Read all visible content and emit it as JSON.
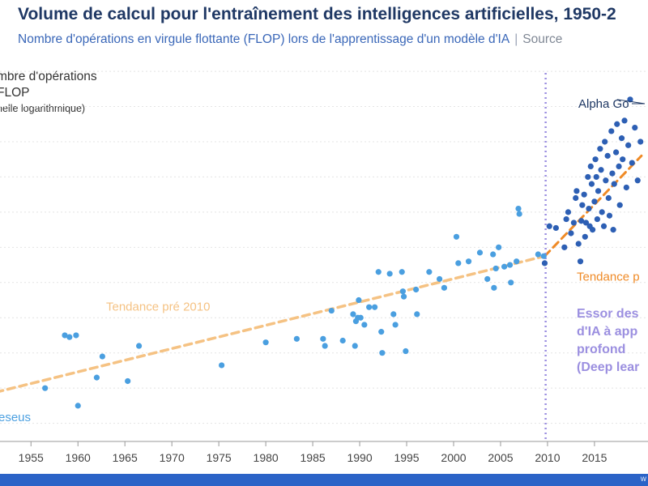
{
  "chart_data": {
    "type": "scatter",
    "title": "Volume de calcul pour l'entraînement des intelligences artificielles, 1950-2",
    "subtitle": "Nombre d'opérations en virgule flottante (FLOP) lors de l'apprentissage d'un modèle d'IA",
    "source": "Source",
    "ylabel_lines": [
      "mbre d'opérations",
      "FLOP",
      "helle logarithmique)"
    ],
    "x_ticks": [
      "1955",
      "1960",
      "1965",
      "1970",
      "1975",
      "1980",
      "1985",
      "1990",
      "1995",
      "2000",
      "2005",
      "2010",
      "2015"
    ],
    "y_scale": "log",
    "grid": true,
    "series": [
      {
        "name": "pre-2010",
        "color": "#4a9fe0",
        "points": [
          [
            1956.5,
            3.0
          ],
          [
            1958.6,
            4.5
          ],
          [
            1959.1,
            4.45
          ],
          [
            1959.8,
            4.5
          ],
          [
            1960.0,
            2.5
          ],
          [
            1962.0,
            3.3
          ],
          [
            1962.6,
            3.9
          ],
          [
            1965.3,
            3.2
          ],
          [
            1966.5,
            4.2
          ],
          [
            1975.3,
            3.65
          ],
          [
            1980.0,
            4.3
          ],
          [
            1983.3,
            4.4
          ],
          [
            1986.1,
            4.4
          ],
          [
            1986.3,
            4.2
          ],
          [
            1987.0,
            5.2
          ],
          [
            1988.2,
            4.35
          ],
          [
            1989.3,
            5.1
          ],
          [
            1989.5,
            4.2
          ],
          [
            1989.6,
            4.9
          ],
          [
            1989.8,
            5.0
          ],
          [
            1989.9,
            5.5
          ],
          [
            1990.1,
            5.0
          ],
          [
            1990.5,
            4.8
          ],
          [
            1991.0,
            5.3
          ],
          [
            1991.6,
            5.3
          ],
          [
            1992.0,
            6.3
          ],
          [
            1992.3,
            4.6
          ],
          [
            1992.4,
            4.0
          ],
          [
            1993.2,
            6.25
          ],
          [
            1993.6,
            5.1
          ],
          [
            1993.8,
            4.8
          ],
          [
            1994.5,
            6.3
          ],
          [
            1994.6,
            5.75
          ],
          [
            1994.7,
            5.6
          ],
          [
            1994.9,
            4.05
          ],
          [
            1996.0,
            5.8
          ],
          [
            1996.1,
            5.1
          ],
          [
            1997.4,
            6.3
          ],
          [
            1998.5,
            6.1
          ],
          [
            1999.0,
            5.85
          ],
          [
            2000.3,
            7.3
          ],
          [
            2000.5,
            6.55
          ],
          [
            2001.6,
            6.6
          ],
          [
            2002.8,
            6.85
          ],
          [
            2003.6,
            6.1
          ],
          [
            2004.2,
            6.8
          ],
          [
            2004.3,
            5.85
          ],
          [
            2004.5,
            6.4
          ],
          [
            2004.8,
            7.0
          ],
          [
            2005.4,
            6.45
          ],
          [
            2006.0,
            6.5
          ],
          [
            2006.1,
            6.0
          ],
          [
            2006.7,
            6.6
          ],
          [
            2006.9,
            8.1
          ],
          [
            2007.0,
            7.95
          ],
          [
            2009.0,
            6.8
          ],
          [
            2009.6,
            6.75
          ]
        ]
      },
      {
        "name": "post-2010",
        "color": "#2d5fb4",
        "points": [
          [
            2009.7,
            6.55
          ],
          [
            2010.2,
            7.6
          ],
          [
            2010.9,
            7.55
          ],
          [
            2011.8,
            7.0
          ],
          [
            2012.0,
            7.8
          ],
          [
            2012.2,
            8.0
          ],
          [
            2012.5,
            7.4
          ],
          [
            2012.8,
            7.7
          ],
          [
            2013.0,
            8.4
          ],
          [
            2013.1,
            8.6
          ],
          [
            2013.3,
            7.1
          ],
          [
            2013.5,
            6.6
          ],
          [
            2013.6,
            7.75
          ],
          [
            2013.7,
            8.2
          ],
          [
            2013.9,
            8.5
          ],
          [
            2014.0,
            7.3
          ],
          [
            2014.1,
            7.7
          ],
          [
            2014.3,
            9.0
          ],
          [
            2014.4,
            8.1
          ],
          [
            2014.5,
            7.6
          ],
          [
            2014.6,
            9.3
          ],
          [
            2014.7,
            8.8
          ],
          [
            2014.8,
            7.5
          ],
          [
            2015.0,
            8.3
          ],
          [
            2015.1,
            9.5
          ],
          [
            2015.2,
            9.0
          ],
          [
            2015.3,
            7.8
          ],
          [
            2015.4,
            8.6
          ],
          [
            2015.6,
            9.8
          ],
          [
            2015.7,
            9.2
          ],
          [
            2015.8,
            8.0
          ],
          [
            2016.0,
            7.6
          ],
          [
            2016.1,
            10.0
          ],
          [
            2016.2,
            8.9
          ],
          [
            2016.4,
            9.6
          ],
          [
            2016.5,
            8.4
          ],
          [
            2016.6,
            7.9
          ],
          [
            2016.8,
            10.3
          ],
          [
            2016.9,
            9.1
          ],
          [
            2017.0,
            7.5
          ],
          [
            2017.1,
            8.8
          ],
          [
            2017.3,
            9.7
          ],
          [
            2017.4,
            10.5
          ],
          [
            2017.6,
            9.3
          ],
          [
            2017.7,
            8.2
          ],
          [
            2017.9,
            10.1
          ],
          [
            2018.0,
            9.5
          ],
          [
            2018.2,
            10.6
          ],
          [
            2018.4,
            8.7
          ],
          [
            2018.6,
            9.9
          ],
          [
            2018.8,
            11.2
          ],
          [
            2019.0,
            9.4
          ],
          [
            2019.3,
            10.4
          ],
          [
            2019.6,
            8.9
          ],
          [
            2019.9,
            10.0
          ]
        ]
      }
    ],
    "trend_pre": {
      "label": "Tendance pré 2010",
      "color": "#f5c283",
      "from": [
        1950.0,
        2.8
      ],
      "to": [
        2009.7,
        6.75
      ]
    },
    "trend_post": {
      "label": "Tendance p",
      "color": "#ef8a26",
      "from": [
        2009.7,
        6.75
      ],
      "to": [
        2020.0,
        9.6
      ]
    },
    "vline": {
      "x": 2009.8,
      "color": "#9b8fe0"
    },
    "annotations": {
      "alpha_go": {
        "label": "Alpha Go",
        "x": 2017.4,
        "y": 11.2
      },
      "deep_learning": [
        "Essor des",
        "d'IA à app",
        "profond",
        "(Deep lear"
      ],
      "perceptron": "eseus"
    },
    "y_range": [
      1.6,
      12.6
    ],
    "x_range": [
      1951.7,
      2020.7
    ]
  },
  "footer": {
    "text": "w"
  }
}
